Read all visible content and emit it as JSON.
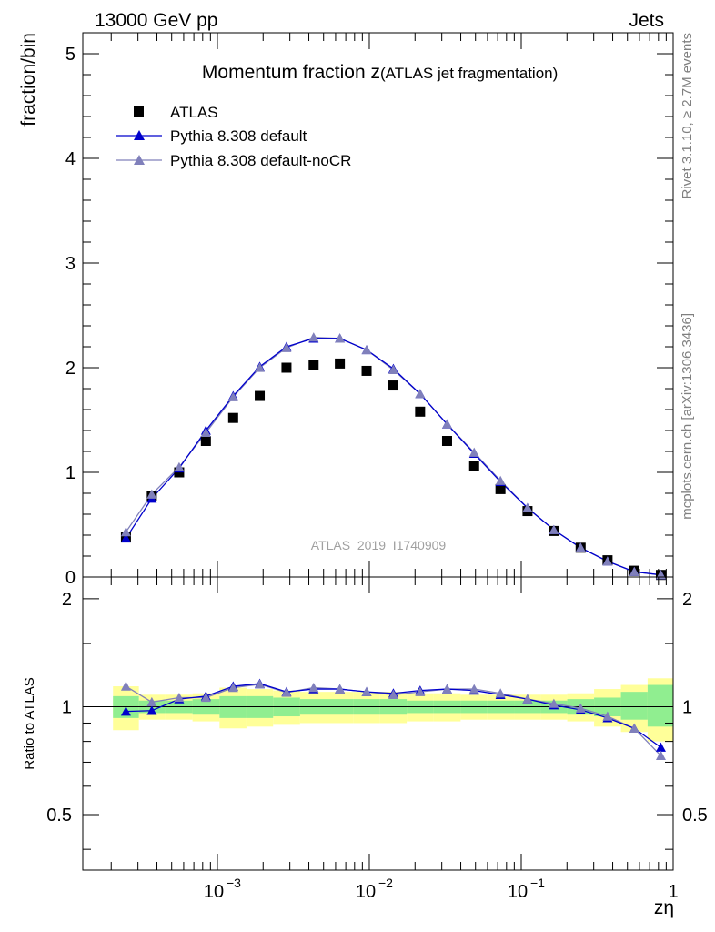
{
  "header": {
    "left": "13000 GeV pp",
    "right": "Jets"
  },
  "side": {
    "rivet": "Rivet 3.1.10, ≥ 2.7M events",
    "site": "mcplots.cern.ch [arXiv:1306.3436]"
  },
  "colors": {
    "atlas": "#000000",
    "default": "#0000cc",
    "nocr": "#8080bb",
    "band_inner": "#90ee90",
    "band_outer": "#ffff99"
  },
  "chart_data": [
    {
      "type": "scatter",
      "title_main": "Momentum fraction z",
      "title_sub": "(ATLAS jet fragmentation)",
      "ylabel": "fraction/bin",
      "xscale": "log",
      "xlim": [
        0.00013,
        1
      ],
      "ylim": [
        0,
        5.2
      ],
      "yticks": [
        "0",
        "1",
        "2",
        "3",
        "4",
        "5"
      ],
      "watermark": "ATLAS_2019_I1740909",
      "legend_position": "top-left",
      "x": [
        0.00025,
        0.00037,
        0.00056,
        0.00084,
        0.00127,
        0.0019,
        0.00285,
        0.0043,
        0.0064,
        0.0096,
        0.0144,
        0.0216,
        0.0325,
        0.049,
        0.073,
        0.11,
        0.164,
        0.246,
        0.37,
        0.555,
        0.83
      ],
      "series": [
        {
          "name": "ATLAS",
          "marker": "square",
          "values": [
            0.38,
            0.77,
            1.0,
            1.3,
            1.52,
            1.73,
            2.0,
            2.03,
            2.04,
            1.97,
            1.83,
            1.58,
            1.3,
            1.06,
            0.84,
            0.63,
            0.44,
            0.28,
            0.16,
            0.06,
            0.02
          ]
        },
        {
          "name": "Pythia 8.308 default",
          "marker": "triangle",
          "values": [
            0.37,
            0.75,
            1.04,
            1.4,
            1.73,
            2.01,
            2.2,
            2.28,
            2.28,
            2.17,
            1.99,
            1.75,
            1.46,
            1.18,
            0.91,
            0.66,
            0.45,
            0.28,
            0.15,
            0.05,
            0.02
          ]
        },
        {
          "name": "Pythia 8.308 default-noCR",
          "marker": "triangle",
          "values": [
            0.43,
            0.79,
            1.05,
            1.38,
            1.72,
            2.0,
            2.19,
            2.29,
            2.28,
            2.17,
            1.98,
            1.75,
            1.46,
            1.19,
            0.92,
            0.66,
            0.45,
            0.28,
            0.15,
            0.05,
            0.02
          ]
        }
      ]
    },
    {
      "type": "line",
      "ylabel": "Ratio to ATLAS",
      "xlabel": "zη",
      "xscale": "log",
      "xlim": [
        0.00013,
        1
      ],
      "ylim": [
        0.35,
        2.3
      ],
      "yticks": [
        "0.5",
        "1",
        "2"
      ],
      "xticks": [
        "10",
        "10",
        "10",
        "1"
      ],
      "xtick_exponents": [
        "−3",
        "−2",
        "−1",
        ""
      ],
      "band_inner": [
        [
          0.93,
          1.07
        ],
        [
          0.96,
          1.04
        ],
        [
          0.96,
          1.04
        ],
        [
          0.95,
          1.05
        ],
        [
          0.93,
          1.07
        ],
        [
          0.93,
          1.07
        ],
        [
          0.94,
          1.06
        ],
        [
          0.95,
          1.05
        ],
        [
          0.95,
          1.05
        ],
        [
          0.95,
          1.05
        ],
        [
          0.95,
          1.05
        ],
        [
          0.96,
          1.04
        ],
        [
          0.96,
          1.04
        ],
        [
          0.96,
          1.04
        ],
        [
          0.96,
          1.04
        ],
        [
          0.96,
          1.04
        ],
        [
          0.96,
          1.04
        ],
        [
          0.95,
          1.05
        ],
        [
          0.94,
          1.06
        ],
        [
          0.92,
          1.1
        ],
        [
          0.88,
          1.15
        ]
      ],
      "band_outer": [
        [
          0.86,
          1.14
        ],
        [
          0.92,
          1.08
        ],
        [
          0.92,
          1.08
        ],
        [
          0.91,
          1.09
        ],
        [
          0.87,
          1.13
        ],
        [
          0.88,
          1.12
        ],
        [
          0.89,
          1.11
        ],
        [
          0.9,
          1.1
        ],
        [
          0.9,
          1.1
        ],
        [
          0.9,
          1.1
        ],
        [
          0.9,
          1.1
        ],
        [
          0.91,
          1.09
        ],
        [
          0.91,
          1.09
        ],
        [
          0.92,
          1.08
        ],
        [
          0.92,
          1.08
        ],
        [
          0.92,
          1.08
        ],
        [
          0.92,
          1.08
        ],
        [
          0.91,
          1.09
        ],
        [
          0.88,
          1.12
        ],
        [
          0.85,
          1.15
        ],
        [
          0.8,
          1.2
        ]
      ],
      "series": [
        {
          "name": "Pythia 8.308 default",
          "values": [
            0.97,
            0.975,
            1.05,
            1.07,
            1.14,
            1.16,
            1.1,
            1.12,
            1.12,
            1.1,
            1.09,
            1.11,
            1.12,
            1.11,
            1.08,
            1.05,
            1.01,
            0.98,
            0.93,
            0.87,
            0.77
          ]
        },
        {
          "name": "Pythia 8.308 default-noCR",
          "values": [
            1.14,
            1.03,
            1.06,
            1.06,
            1.13,
            1.155,
            1.095,
            1.13,
            1.12,
            1.1,
            1.08,
            1.1,
            1.12,
            1.12,
            1.09,
            1.05,
            1.02,
            0.99,
            0.94,
            0.87,
            0.73
          ]
        }
      ]
    }
  ]
}
